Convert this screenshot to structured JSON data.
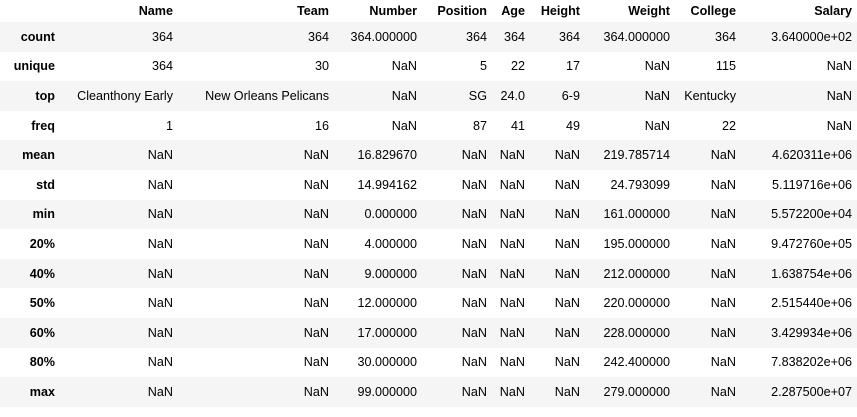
{
  "table": {
    "columns": [
      "",
      "Name",
      "Team",
      "Number",
      "Position",
      "Age",
      "Height",
      "Weight",
      "College",
      "Salary"
    ],
    "rows": [
      {
        "label": "count",
        "cells": [
          "364",
          "364",
          "364.000000",
          "364",
          "364",
          "364",
          "364.000000",
          "364",
          "3.640000e+02"
        ]
      },
      {
        "label": "unique",
        "cells": [
          "364",
          "30",
          "NaN",
          "5",
          "22",
          "17",
          "NaN",
          "115",
          "NaN"
        ]
      },
      {
        "label": "top",
        "cells": [
          "Cleanthony Early",
          "New Orleans Pelicans",
          "NaN",
          "SG",
          "24.0",
          "6-9",
          "NaN",
          "Kentucky",
          "NaN"
        ]
      },
      {
        "label": "freq",
        "cells": [
          "1",
          "16",
          "NaN",
          "87",
          "41",
          "49",
          "NaN",
          "22",
          "NaN"
        ]
      },
      {
        "label": "mean",
        "cells": [
          "NaN",
          "NaN",
          "16.829670",
          "NaN",
          "NaN",
          "NaN",
          "219.785714",
          "NaN",
          "4.620311e+06"
        ]
      },
      {
        "label": "std",
        "cells": [
          "NaN",
          "NaN",
          "14.994162",
          "NaN",
          "NaN",
          "NaN",
          "24.793099",
          "NaN",
          "5.119716e+06"
        ]
      },
      {
        "label": "min",
        "cells": [
          "NaN",
          "NaN",
          "0.000000",
          "NaN",
          "NaN",
          "NaN",
          "161.000000",
          "NaN",
          "5.572200e+04"
        ]
      },
      {
        "label": "20%",
        "cells": [
          "NaN",
          "NaN",
          "4.000000",
          "NaN",
          "NaN",
          "NaN",
          "195.000000",
          "NaN",
          "9.472760e+05"
        ]
      },
      {
        "label": "40%",
        "cells": [
          "NaN",
          "NaN",
          "9.000000",
          "NaN",
          "NaN",
          "NaN",
          "212.000000",
          "NaN",
          "1.638754e+06"
        ]
      },
      {
        "label": "50%",
        "cells": [
          "NaN",
          "NaN",
          "12.000000",
          "NaN",
          "NaN",
          "NaN",
          "220.000000",
          "NaN",
          "2.515440e+06"
        ]
      },
      {
        "label": "60%",
        "cells": [
          "NaN",
          "NaN",
          "17.000000",
          "NaN",
          "NaN",
          "NaN",
          "228.000000",
          "NaN",
          "3.429934e+06"
        ]
      },
      {
        "label": "80%",
        "cells": [
          "NaN",
          "NaN",
          "30.000000",
          "NaN",
          "NaN",
          "NaN",
          "242.400000",
          "NaN",
          "7.838202e+06"
        ]
      },
      {
        "label": "max",
        "cells": [
          "NaN",
          "NaN",
          "99.000000",
          "NaN",
          "NaN",
          "NaN",
          "279.000000",
          "NaN",
          "2.287500e+07"
        ]
      }
    ]
  }
}
